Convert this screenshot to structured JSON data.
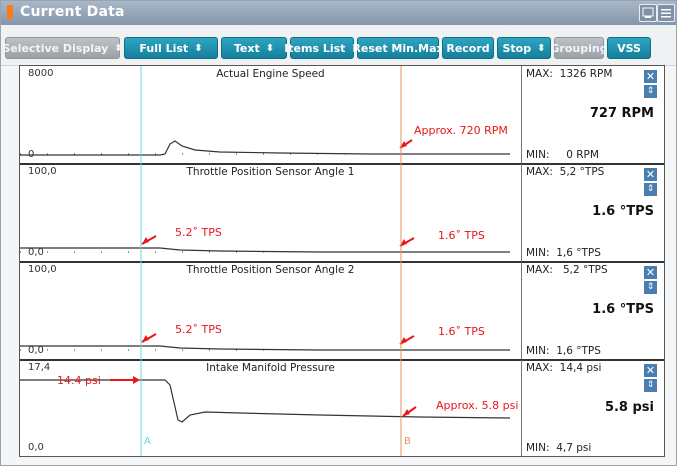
{
  "window": {
    "title": "Current Data"
  },
  "toolbar": {
    "buttons": [
      {
        "label": "Selective Display",
        "dropdown": true,
        "style": "gray"
      },
      {
        "label": "Full List",
        "dropdown": true,
        "style": "blue"
      },
      {
        "label": "Text",
        "dropdown": true,
        "style": "blue"
      },
      {
        "label": "Items List",
        "dropdown": true,
        "style": "blue"
      },
      {
        "label": "Reset Min.Max",
        "dropdown": false,
        "style": "blue"
      },
      {
        "label": "Record",
        "dropdown": false,
        "style": "blue"
      },
      {
        "label": "Stop",
        "dropdown": true,
        "style": "blue"
      },
      {
        "label": "Grouping",
        "dropdown": false,
        "style": "gray"
      },
      {
        "label": "VSS",
        "dropdown": false,
        "style": "blue"
      }
    ]
  },
  "cursors": {
    "a_label": "A",
    "b_label": "B",
    "a_color": "#6fd3de",
    "b_color": "#e8925a"
  },
  "panels": [
    {
      "title": "Actual Engine Speed",
      "scale_max": "8000",
      "scale_min": "0",
      "max": "MAX:  1326 RPM",
      "current": "727 RPM",
      "min": "MIN:     0 RPM",
      "annotations": [
        {
          "text": "Approx. 720 RPM"
        }
      ]
    },
    {
      "title": "Throttle Position Sensor Angle 1",
      "scale_max": "100,0",
      "scale_min": "0,0",
      "max": "MAX:  5,2 °TPS",
      "current": "1.6 °TPS",
      "min": "MIN:  1,6 °TPS",
      "annotations": [
        {
          "text": "5.2˚ TPS"
        },
        {
          "text": "1.6˚ TPS"
        }
      ]
    },
    {
      "title": "Throttle Position Sensor Angle 2",
      "scale_max": "100,0",
      "scale_min": "0,0",
      "max": "MAX:   5,2 °TPS",
      "current": "1.6 °TPS",
      "min": "MIN:  1,6 °TPS",
      "annotations": [
        {
          "text": "5.2˚ TPS"
        },
        {
          "text": "1.6˚ TPS"
        }
      ]
    },
    {
      "title": "Intake Manifold Pressure",
      "scale_max": "17,4",
      "scale_min": "0,0",
      "max": "MAX:  14,4 psi",
      "current": "5.8 psi",
      "min": "MIN:  4,7 psi",
      "annotations": [
        {
          "text": "14.4 psi"
        },
        {
          "text": "Approx. 5.8 psi"
        }
      ]
    }
  ],
  "colors": {
    "accent": "#1a8eac",
    "annotation": "#e8161b",
    "title_icon": "#ff7a12"
  },
  "icons": {
    "close": "close-icon",
    "scroll": "updown-arrow-icon"
  }
}
